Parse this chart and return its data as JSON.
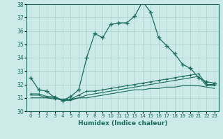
{
  "xlabel": "Humidex (Indice chaleur)",
  "ylabel": "",
  "bg_color": "#cceae7",
  "line_color": "#1a6b5e",
  "grid_color": "#aacfcb",
  "x_values": [
    0,
    1,
    2,
    3,
    4,
    5,
    6,
    7,
    8,
    9,
    10,
    11,
    12,
    13,
    14,
    15,
    16,
    17,
    18,
    19,
    20,
    21,
    22,
    23
  ],
  "series1": [
    32.5,
    31.6,
    31.5,
    31.0,
    30.8,
    31.1,
    31.6,
    34.0,
    35.8,
    35.5,
    36.5,
    36.6,
    36.6,
    37.1,
    38.2,
    37.4,
    35.5,
    34.9,
    34.3,
    33.5,
    33.2,
    32.5,
    32.2,
    32.1
  ],
  "series2": [
    31.3,
    31.3,
    31.1,
    31.1,
    30.8,
    30.9,
    31.2,
    31.5,
    31.5,
    31.6,
    31.7,
    31.8,
    31.9,
    32.0,
    32.1,
    32.2,
    32.3,
    32.4,
    32.5,
    32.6,
    32.7,
    32.8,
    32.0,
    32.0
  ],
  "series3": [
    31.2,
    31.2,
    31.0,
    31.0,
    30.8,
    30.8,
    31.0,
    31.2,
    31.3,
    31.4,
    31.5,
    31.6,
    31.7,
    31.8,
    31.9,
    32.0,
    32.1,
    32.2,
    32.3,
    32.4,
    32.5,
    32.6,
    31.9,
    31.9
  ],
  "series4": [
    31.0,
    31.0,
    31.0,
    30.9,
    30.9,
    30.9,
    31.0,
    31.0,
    31.1,
    31.2,
    31.3,
    31.4,
    31.5,
    31.6,
    31.6,
    31.7,
    31.7,
    31.8,
    31.8,
    31.9,
    31.9,
    31.9,
    31.8,
    31.7
  ],
  "ylim": [
    30,
    38
  ],
  "yticks": [
    30,
    31,
    32,
    33,
    34,
    35,
    36,
    37,
    38
  ],
  "xticks": [
    0,
    1,
    2,
    3,
    4,
    5,
    6,
    7,
    8,
    9,
    10,
    11,
    12,
    13,
    14,
    15,
    16,
    17,
    18,
    19,
    20,
    21,
    22,
    23
  ]
}
